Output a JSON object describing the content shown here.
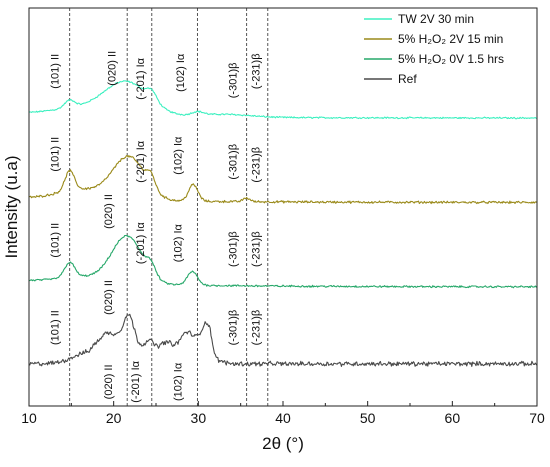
{
  "chart_data": {
    "type": "line",
    "xlabel": "2θ (°)",
    "ylabel": "Intensity (u.a)",
    "xlim": [
      10,
      70
    ],
    "x_ticks": [
      "10",
      "20",
      "30",
      "40",
      "50",
      "60",
      "70"
    ],
    "y_ticks_shown": false,
    "grid": false,
    "legend_placement": "top-right",
    "reference_lines_2theta": [
      14.8,
      21.6,
      24.5,
      29.9,
      35.7,
      38.2
    ],
    "colors": {
      "tw": "#3df0c0",
      "h2o2_2v": "#9a8a1a",
      "h2o2_0v": "#27a86a",
      "ref": "#4a4a4a",
      "vline": "#555555"
    },
    "legend": [
      {
        "label": "TW 2V 30 min",
        "key": "tw"
      },
      {
        "label": "5% H₂O₂ 2V 15 min",
        "key": "h2o2_2v"
      },
      {
        "label": "5% H₂O₂ 0V 1.5 hrs",
        "key": "h2o2_0v"
      },
      {
        "label": "Ref",
        "key": "ref"
      }
    ],
    "series": [
      {
        "name": "TW 2V 30 min",
        "key": "tw",
        "baseline": 8.55,
        "peaks": [
          [
            14.8,
            0.25,
            0.6
          ],
          [
            16.5,
            0.25,
            4
          ],
          [
            21.6,
            1.05,
            2.6
          ],
          [
            24.5,
            0.3,
            0.6
          ],
          [
            29.9,
            0.12,
            0.7
          ],
          [
            33,
            0.1,
            3
          ]
        ],
        "decay": [
          0.12,
          15
        ],
        "noise": 0.04
      },
      {
        "name": "5% H₂O₂ 2V 15 min",
        "key": "h2o2_2v",
        "baseline": 5.75,
        "peaks": [
          [
            14.8,
            0.65,
            0.55
          ],
          [
            15.5,
            0.2,
            2.5
          ],
          [
            21.8,
            1.4,
            1.9
          ],
          [
            24.4,
            0.4,
            0.5
          ],
          [
            29.4,
            0.55,
            0.55
          ],
          [
            35.7,
            0.12,
            0.4
          ],
          [
            17.5,
            0.15,
            3
          ]
        ],
        "decay": [
          0.15,
          15
        ],
        "noise": 0.06
      },
      {
        "name": "5% H₂O₂ 0V 1.5 hrs",
        "key": "h2o2_0v",
        "baseline": 2.95,
        "peaks": [
          [
            14.8,
            0.5,
            0.6
          ],
          [
            21.6,
            1.55,
            1.8
          ],
          [
            24.4,
            0.35,
            0.55
          ],
          [
            29.3,
            0.45,
            0.6
          ],
          [
            16.5,
            0.2,
            3
          ]
        ],
        "decay": [
          0.2,
          15
        ],
        "noise": 0.05
      },
      {
        "name": "Ref",
        "key": "ref",
        "baseline": 0.4,
        "peaks": [
          [
            19.5,
            0.55,
            2
          ],
          [
            21.8,
            0.9,
            0.6
          ],
          [
            24.2,
            0.3,
            0.5
          ],
          [
            26.2,
            0.25,
            0.7
          ],
          [
            28.5,
            0.35,
            0.6
          ],
          [
            31,
            0.6,
            0.5
          ],
          [
            16,
            0.2,
            1.5
          ],
          [
            30,
            0.4,
            1.5
          ]
        ],
        "plateau": [
          17,
          32,
          0.45
        ],
        "decay": [
          0.0,
          15
        ],
        "noise": 0.12
      }
    ],
    "annotations": [
      {
        "text": "(101) II",
        "x": 13.5,
        "y": 10.1
      },
      {
        "text": "(020) II",
        "x": 20.2,
        "y": 10.2
      },
      {
        "text": "(-201) Iα",
        "x": 23.6,
        "y": 9.85
      },
      {
        "text": "(102) Iα",
        "x": 28.3,
        "y": 10.05
      },
      {
        "text": "(-301)β",
        "x": 34.5,
        "y": 9.8
      },
      {
        "text": "(-231)β",
        "x": 37.2,
        "y": 10.1
      },
      {
        "text": "(101) II",
        "x": 13.5,
        "y": 7.35
      },
      {
        "text": "(020) II",
        "x": 19.8,
        "y": 5.45
      },
      {
        "text": "(-201) Iα",
        "x": 23.6,
        "y": 7.1
      },
      {
        "text": "(102) Iα",
        "x": 28.0,
        "y": 7.3
      },
      {
        "text": "(-301)β",
        "x": 34.5,
        "y": 7.1
      },
      {
        "text": "(-231)β",
        "x": 37.2,
        "y": 7.0
      },
      {
        "text": "(101) II",
        "x": 13.5,
        "y": 4.5
      },
      {
        "text": "(020) II",
        "x": 19.8,
        "y": 2.6
      },
      {
        "text": "(-201) Iα",
        "x": 23.6,
        "y": 4.4
      },
      {
        "text": "(102) Iα",
        "x": 28.0,
        "y": 4.4
      },
      {
        "text": "(-301)β",
        "x": 34.5,
        "y": 4.2
      },
      {
        "text": "(-231)β",
        "x": 37.2,
        "y": 4.2
      },
      {
        "text": "(101) II",
        "x": 13.5,
        "y": 1.6
      },
      {
        "text": "(020) II",
        "x": 19.8,
        "y": -0.2
      },
      {
        "text": "(-201) Iα",
        "x": 23.0,
        "y": -0.2
      },
      {
        "text": "(102) Iα",
        "x": 28.0,
        "y": -0.2
      },
      {
        "text": "(-301)β",
        "x": 34.5,
        "y": 1.6
      },
      {
        "text": "(-231)β",
        "x": 37.2,
        "y": 1.6
      }
    ]
  }
}
